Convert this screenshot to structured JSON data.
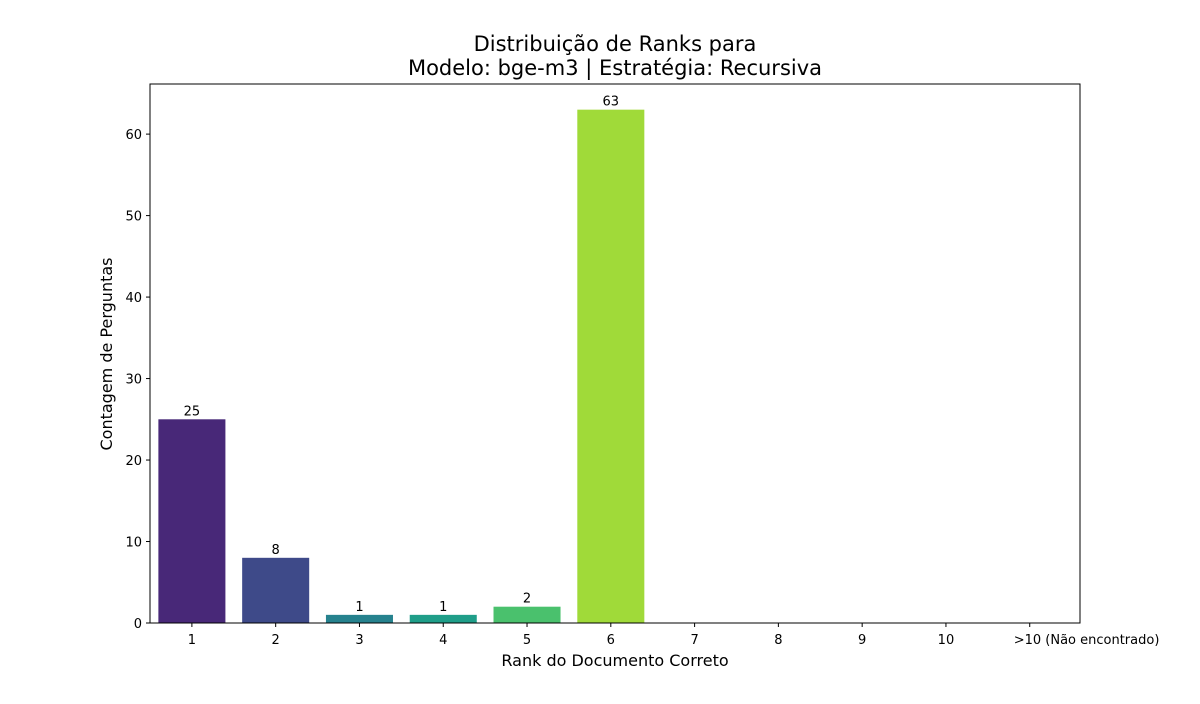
{
  "chart_data": {
    "type": "bar",
    "title": "Distribuição de Ranks para",
    "subtitle": "Modelo: bge-m3 | Estratégia: Recursiva",
    "xlabel": "Rank do Documento Correto",
    "ylabel": "Contagem de Perguntas",
    "categories": [
      "1",
      "2",
      "3",
      "4",
      "5",
      "6",
      "7",
      "8",
      "9",
      "10",
      ">10 (Não encontrado)"
    ],
    "values": [
      25,
      8,
      1,
      1,
      2,
      63,
      0,
      0,
      0,
      0,
      0
    ],
    "data_labels": [
      "25",
      "8",
      "1",
      "1",
      "2",
      "63",
      "",
      "",
      "",
      "",
      ""
    ],
    "colors": [
      "#482878",
      "#3e4a89",
      "#26828e",
      "#1f9e89",
      "#4ac16d",
      "#a0da39",
      "#fde725",
      "#fde725",
      "#fde725",
      "#fde725",
      "#fde725"
    ],
    "ylim": [
      0,
      66.15
    ],
    "yticks": [
      0,
      10,
      20,
      30,
      40,
      50,
      60
    ],
    "grid": false,
    "legend": "none"
  }
}
